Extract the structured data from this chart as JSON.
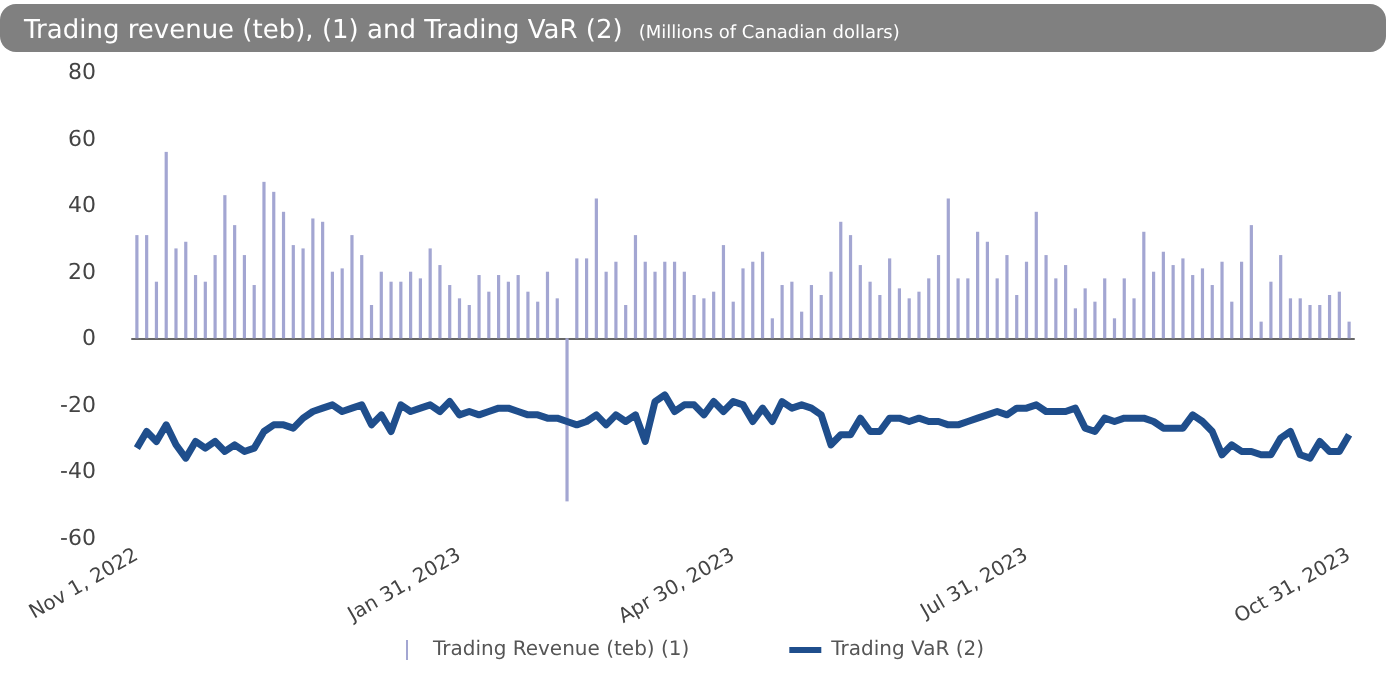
{
  "chart_data": {
    "type": "bar",
    "title": "Trading revenue (teb), (1) and Trading VaR (2)",
    "subtitle": "(Millions of Canadian dollars)",
    "categories": [
      "Nov 1, 2022",
      null,
      null,
      null,
      null,
      null,
      null,
      null,
      null,
      null,
      null,
      null,
      null,
      null,
      null,
      null,
      null,
      null,
      null,
      null,
      null,
      null,
      null,
      null,
      null,
      null,
      null,
      null,
      null,
      null,
      null,
      null,
      null,
      "Jan 31, 2023",
      null,
      null,
      null,
      null,
      null,
      null,
      null,
      null,
      null,
      null,
      null,
      null,
      null,
      null,
      null,
      null,
      null,
      null,
      null,
      null,
      null,
      null,
      null,
      null,
      null,
      null,
      null,
      "Apr 30, 2023",
      null,
      null,
      null,
      null,
      null,
      null,
      null,
      null,
      null,
      null,
      null,
      null,
      null,
      null,
      null,
      null,
      null,
      null,
      null,
      null,
      null,
      null,
      null,
      null,
      null,
      null,
      null,
      null,
      null,
      "Jul 31, 2023",
      null,
      null,
      null,
      null,
      null,
      null,
      null,
      null,
      null,
      null,
      null,
      null,
      null,
      null,
      null,
      null,
      null,
      null,
      null,
      null,
      null,
      null,
      null,
      null,
      null,
      null,
      null,
      null,
      null,
      null,
      null,
      null,
      "Oct 31, 2023"
    ],
    "series": [
      {
        "name": "Trading Revenue (teb) (1)",
        "color": "#a3a6d2",
        "values": [
          31,
          31,
          17,
          56,
          27,
          29,
          19,
          17,
          25,
          43,
          34,
          25,
          16,
          47,
          44,
          38,
          28,
          27,
          36,
          35,
          20,
          21,
          31,
          25,
          10,
          20,
          17,
          17,
          20,
          18,
          27,
          22,
          16,
          12,
          10,
          19,
          14,
          19,
          17,
          19,
          14,
          11,
          20,
          12,
          -49,
          24,
          24,
          42,
          20,
          23,
          10,
          31,
          23,
          20,
          23,
          23,
          20,
          13,
          12,
          14,
          28,
          11,
          21,
          23,
          26,
          6,
          16,
          17,
          8,
          16,
          13,
          20,
          35,
          31,
          22,
          17,
          13,
          24,
          15,
          12,
          14,
          18,
          25,
          42,
          18,
          18,
          32,
          29,
          18,
          25,
          13,
          23,
          38,
          25,
          18,
          22,
          9,
          15,
          11,
          18,
          6,
          18,
          12,
          32,
          20,
          26,
          22,
          24,
          19,
          21,
          16,
          23,
          11,
          23,
          34,
          5,
          17,
          25,
          12,
          12,
          10,
          10,
          13,
          14,
          5
        ]
      },
      {
        "name": "Trading VaR (2)",
        "type": "line",
        "color": "#1f4e8c",
        "values": [
          -33,
          -28,
          -31,
          -26,
          -32,
          -36,
          -31,
          -33,
          -31,
          -34,
          -32,
          -34,
          -33,
          -28,
          -26,
          -26,
          -27,
          -24,
          -22,
          -21,
          -20,
          -22,
          -21,
          -20,
          -26,
          -23,
          -28,
          -20,
          -22,
          -21,
          -20,
          -22,
          -19,
          -23,
          -22,
          -23,
          -22,
          -21,
          -21,
          -22,
          -23,
          -23,
          -24,
          -24,
          -25,
          -26,
          -25,
          -23,
          -26,
          -23,
          -25,
          -23,
          -31,
          -19,
          -17,
          -22,
          -20,
          -20,
          -23,
          -19,
          -22,
          -19,
          -20,
          -25,
          -21,
          -25,
          -19,
          -21,
          -20,
          -21,
          -23,
          -32,
          -29,
          -29,
          -24,
          -28,
          -28,
          -24,
          -24,
          -25,
          -24,
          -25,
          -25,
          -26,
          -26,
          -25,
          -24,
          -23,
          -22,
          -23,
          -21,
          -21,
          -20,
          -22,
          -22,
          -22,
          -21,
          -27,
          -28,
          -24,
          -25,
          -24,
          -24,
          -24,
          -25,
          -27,
          -27,
          -27,
          -23,
          -25,
          -28,
          -35,
          -32,
          -34,
          -34,
          -35,
          -35,
          -30,
          -28,
          -35,
          -36,
          -31,
          -34,
          -34,
          -29
        ]
      }
    ],
    "ylim": [
      -60,
      80
    ],
    "yticks": [
      -60,
      -40,
      -20,
      0,
      20,
      40,
      60,
      80
    ],
    "legend": "bottom"
  }
}
